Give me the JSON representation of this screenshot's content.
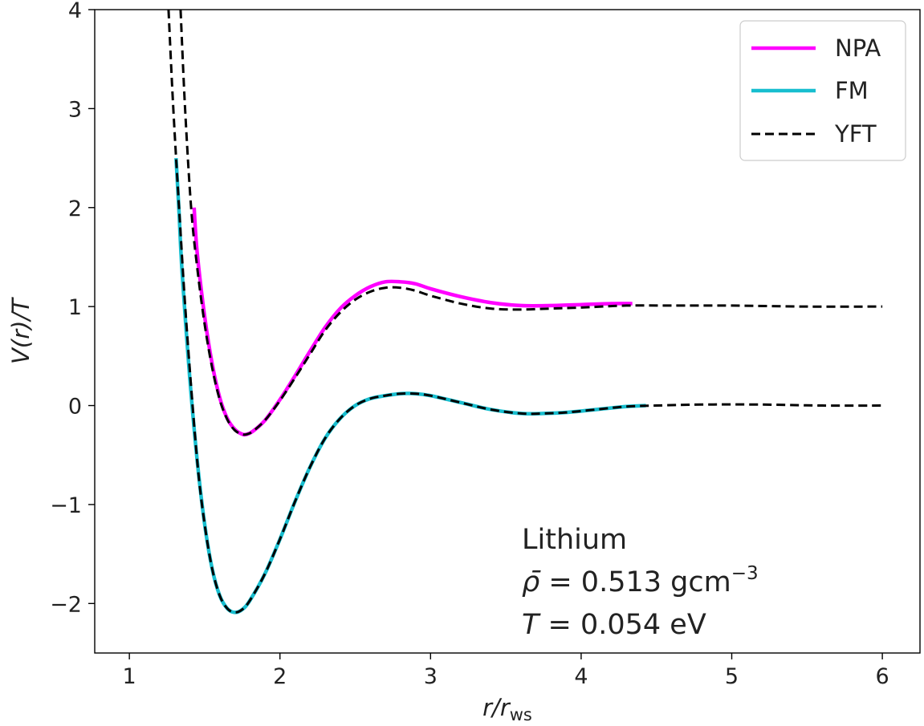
{
  "chart_data": {
    "type": "line",
    "title": "",
    "xlabel": {
      "main": "r/r",
      "sub": "ws"
    },
    "ylabel": "V(r)/T",
    "xlim": [
      0.77,
      6.25
    ],
    "ylim": [
      -2.5,
      4.0
    ],
    "x_ticks": [
      1,
      2,
      3,
      4,
      5,
      6
    ],
    "x_tick_labels": [
      "1",
      "2",
      "3",
      "4",
      "5",
      "6"
    ],
    "y_ticks": [
      -2,
      -1,
      0,
      1,
      2,
      3,
      4
    ],
    "y_tick_labels": [
      "−2",
      "−1",
      "0",
      "1",
      "2",
      "3",
      "4"
    ],
    "grid": false,
    "legend_position": "top-right",
    "annotations": {
      "element": "Lithium",
      "density_symbol": "ρ̄",
      "density_text": " = 0.513 gcm",
      "density_exp": "−3",
      "temperature_symbol": "T",
      "temperature_text": " = 0.054 eV"
    },
    "series": [
      {
        "name": "NPA",
        "color": "#ff00ff",
        "style": "solid",
        "points": [
          [
            1.43,
            2.0
          ],
          [
            1.45,
            1.55
          ],
          [
            1.5,
            0.9
          ],
          [
            1.55,
            0.42
          ],
          [
            1.6,
            0.08
          ],
          [
            1.65,
            -0.13
          ],
          [
            1.7,
            -0.24
          ],
          [
            1.75,
            -0.29
          ],
          [
            1.78,
            -0.29
          ],
          [
            1.82,
            -0.26
          ],
          [
            1.9,
            -0.15
          ],
          [
            2.0,
            0.06
          ],
          [
            2.1,
            0.3
          ],
          [
            2.2,
            0.55
          ],
          [
            2.3,
            0.79
          ],
          [
            2.4,
            0.98
          ],
          [
            2.5,
            1.11
          ],
          [
            2.6,
            1.2
          ],
          [
            2.7,
            1.25
          ],
          [
            2.8,
            1.25
          ],
          [
            2.9,
            1.23
          ],
          [
            3.0,
            1.18
          ],
          [
            3.2,
            1.1
          ],
          [
            3.4,
            1.04
          ],
          [
            3.6,
            1.01
          ],
          [
            3.8,
            1.01
          ],
          [
            4.0,
            1.02
          ],
          [
            4.2,
            1.03
          ],
          [
            4.34,
            1.03
          ]
        ]
      },
      {
        "name": "FM",
        "color": "#17becf",
        "style": "solid",
        "points": [
          [
            1.31,
            2.5
          ],
          [
            1.33,
            1.95
          ],
          [
            1.35,
            1.35
          ],
          [
            1.4,
            0.3
          ],
          [
            1.45,
            -0.55
          ],
          [
            1.5,
            -1.2
          ],
          [
            1.55,
            -1.65
          ],
          [
            1.6,
            -1.92
          ],
          [
            1.65,
            -2.05
          ],
          [
            1.7,
            -2.09
          ],
          [
            1.75,
            -2.06
          ],
          [
            1.8,
            -1.97
          ],
          [
            1.9,
            -1.7
          ],
          [
            2.0,
            -1.35
          ],
          [
            2.1,
            -0.97
          ],
          [
            2.2,
            -0.62
          ],
          [
            2.3,
            -0.33
          ],
          [
            2.4,
            -0.13
          ],
          [
            2.5,
            0.0
          ],
          [
            2.6,
            0.07
          ],
          [
            2.7,
            0.1
          ],
          [
            2.8,
            0.12
          ],
          [
            2.9,
            0.12
          ],
          [
            3.0,
            0.1
          ],
          [
            3.2,
            0.03
          ],
          [
            3.4,
            -0.04
          ],
          [
            3.6,
            -0.08
          ],
          [
            3.75,
            -0.08
          ],
          [
            3.9,
            -0.07
          ],
          [
            4.1,
            -0.04
          ],
          [
            4.3,
            -0.01
          ],
          [
            4.43,
            0.0
          ]
        ]
      },
      {
        "name": "YFT",
        "color": "#000000",
        "style": "dashed",
        "segments": [
          [
            [
              1.26,
              4.0
            ],
            [
              1.29,
              3.05
            ],
            [
              1.33,
              2.0
            ],
            [
              1.38,
              0.8
            ],
            [
              1.45,
              -0.55
            ],
            [
              1.5,
              -1.2
            ],
            [
              1.55,
              -1.65
            ],
            [
              1.6,
              -1.92
            ],
            [
              1.65,
              -2.05
            ],
            [
              1.7,
              -2.09
            ],
            [
              1.75,
              -2.06
            ],
            [
              1.8,
              -1.97
            ],
            [
              1.9,
              -1.7
            ],
            [
              2.0,
              -1.35
            ],
            [
              2.1,
              -0.97
            ],
            [
              2.2,
              -0.62
            ],
            [
              2.3,
              -0.33
            ],
            [
              2.4,
              -0.13
            ],
            [
              2.5,
              0.0
            ],
            [
              2.6,
              0.07
            ],
            [
              2.7,
              0.1
            ],
            [
              2.8,
              0.12
            ],
            [
              2.9,
              0.12
            ],
            [
              3.0,
              0.1
            ],
            [
              3.2,
              0.03
            ],
            [
              3.4,
              -0.04
            ],
            [
              3.6,
              -0.08
            ],
            [
              3.75,
              -0.08
            ],
            [
              3.9,
              -0.07
            ],
            [
              4.1,
              -0.04
            ],
            [
              4.3,
              -0.01
            ],
            [
              4.5,
              0.0
            ],
            [
              4.8,
              0.01
            ],
            [
              5.2,
              0.01
            ],
            [
              5.6,
              0.0
            ],
            [
              6.0,
              0.0
            ]
          ],
          [
            [
              1.34,
              4.0
            ],
            [
              1.37,
              3.0
            ],
            [
              1.41,
              2.0
            ],
            [
              1.45,
              1.4
            ],
            [
              1.5,
              0.82
            ],
            [
              1.55,
              0.38
            ],
            [
              1.6,
              0.06
            ],
            [
              1.65,
              -0.14
            ],
            [
              1.7,
              -0.25
            ],
            [
              1.75,
              -0.29
            ],
            [
              1.78,
              -0.29
            ],
            [
              1.82,
              -0.26
            ],
            [
              1.9,
              -0.15
            ],
            [
              2.0,
              0.05
            ],
            [
              2.1,
              0.28
            ],
            [
              2.2,
              0.52
            ],
            [
              2.3,
              0.76
            ],
            [
              2.4,
              0.94
            ],
            [
              2.5,
              1.07
            ],
            [
              2.6,
              1.15
            ],
            [
              2.7,
              1.19
            ],
            [
              2.8,
              1.19
            ],
            [
              2.9,
              1.16
            ],
            [
              3.0,
              1.11
            ],
            [
              3.2,
              1.03
            ],
            [
              3.4,
              0.98
            ],
            [
              3.6,
              0.97
            ],
            [
              3.8,
              0.98
            ],
            [
              4.0,
              0.99
            ],
            [
              4.3,
              1.01
            ],
            [
              4.6,
              1.01
            ],
            [
              5.0,
              1.01
            ],
            [
              5.5,
              1.0
            ],
            [
              6.0,
              1.0
            ]
          ]
        ]
      }
    ]
  }
}
